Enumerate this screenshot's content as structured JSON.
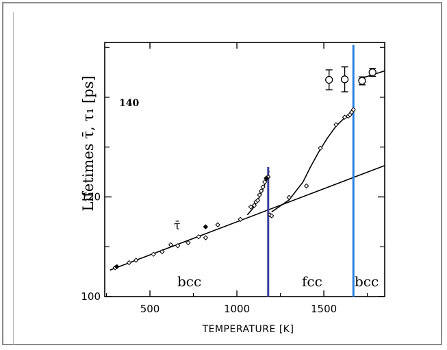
{
  "chart_data": {
    "type": "scatter",
    "ylabel": "Lifetimes τ̄, τ₁ [ps]",
    "xlabel": "TEMPERATURE  [K]",
    "xlim": [
      240,
      1850
    ],
    "ylim": [
      100,
      151
    ],
    "x_ticks": [
      500,
      1000,
      1500
    ],
    "y_ticks": [
      100,
      120
    ],
    "y_minor_ticks": [
      110,
      130,
      140,
      150
    ],
    "grid": false,
    "annotations": {
      "label_140": "140",
      "tau_bar": "τ̄",
      "phase_bcc_low": "bcc",
      "phase_fcc": "fcc",
      "phase_bcc_high": "bcc"
    },
    "phase_boundaries": [
      {
        "name": "bcc-fcc",
        "x": 1180,
        "color": "#3b3f9b"
      },
      {
        "name": "fcc-bcc",
        "x": 1670,
        "color": "#2a7fe0"
      }
    ],
    "series": [
      {
        "marker": "open-diamond",
        "points": [
          [
            300,
            105.8
          ],
          [
            380,
            106.8
          ],
          [
            420,
            107.3
          ],
          [
            520,
            108.5
          ],
          [
            570,
            109.0
          ],
          [
            620,
            110.4
          ],
          [
            660,
            110.2
          ],
          [
            720,
            110.8
          ],
          [
            780,
            112.0
          ],
          [
            820,
            111.8
          ],
          [
            890,
            114.4
          ],
          [
            1020,
            115.5
          ],
          [
            1080,
            118.0
          ],
          [
            1100,
            118.3
          ],
          [
            1110,
            119.0
          ],
          [
            1120,
            119.3
          ],
          [
            1130,
            120.4
          ],
          [
            1140,
            121.2
          ],
          [
            1150,
            122.0
          ],
          [
            1160,
            123.0
          ],
          [
            1170,
            123.7
          ],
          [
            1180,
            124.0
          ],
          [
            1190,
            116.4
          ],
          [
            1200,
            116.2
          ],
          [
            1300,
            119.9
          ],
          [
            1400,
            122.2
          ],
          [
            1480,
            129.8
          ],
          [
            1570,
            134.5
          ],
          [
            1620,
            136.0
          ],
          [
            1640,
            136.2
          ],
          [
            1650,
            136.5
          ],
          [
            1660,
            137.0
          ],
          [
            1670,
            137.5
          ]
        ]
      },
      {
        "marker": "filled-diamond",
        "points": [
          [
            310,
            106.0
          ],
          [
            820,
            114.0
          ],
          [
            1170,
            123.8
          ]
        ]
      },
      {
        "marker": "open-circle-errorbar",
        "points": [
          [
            1530,
            143.5
          ],
          [
            1620,
            143.6
          ],
          [
            1720,
            143.3
          ],
          [
            1780,
            145.0
          ]
        ],
        "error": [
          2.0,
          2.5,
          0.8,
          0.8
        ]
      },
      {
        "marker": "line",
        "name": "linear-fit",
        "points": [
          [
            270,
            105.3
          ],
          [
            1850,
            126.3
          ]
        ]
      },
      {
        "marker": "line",
        "name": "fcc-curve",
        "points": [
          [
            1200,
            117.0
          ],
          [
            1300,
            119.4
          ],
          [
            1380,
            123.0
          ],
          [
            1420,
            125.8
          ],
          [
            1470,
            129.0
          ],
          [
            1520,
            131.8
          ],
          [
            1570,
            134.2
          ],
          [
            1620,
            135.9
          ],
          [
            1670,
            137.4
          ]
        ]
      },
      {
        "marker": "line",
        "name": "bcc-rise",
        "points": [
          [
            1060,
            116.4
          ],
          [
            1090,
            117.6
          ],
          [
            1110,
            118.7
          ],
          [
            1130,
            120.0
          ],
          [
            1150,
            121.6
          ],
          [
            1170,
            123.4
          ],
          [
            1185,
            125.2
          ]
        ]
      },
      {
        "marker": "line",
        "name": "delta-bcc",
        "points": [
          [
            1700,
            143.6
          ],
          [
            1760,
            144.3
          ],
          [
            1850,
            145.3
          ]
        ]
      }
    ]
  }
}
